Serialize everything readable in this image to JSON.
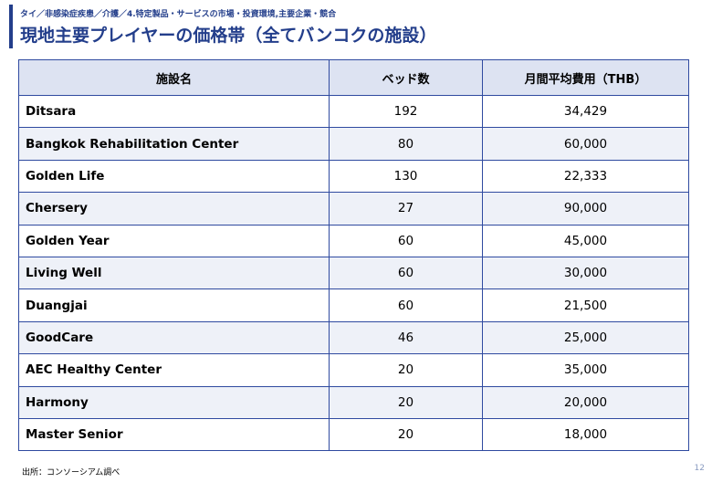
{
  "header": {
    "breadcrumb": "タイ／非感染症疾患／介護／4.特定製品・サービスの市場・投資環境,主要企業・競合",
    "title": "現地主要プレイヤーの価格帯（全てバンコクの施設）"
  },
  "table": {
    "columns": [
      "施設名",
      "ベッド数",
      "月間平均費用（THB）"
    ],
    "rows": [
      {
        "name": "Ditsara",
        "beds": "192",
        "cost": "34,429"
      },
      {
        "name": "Bangkok Rehabilitation Center",
        "beds": "80",
        "cost": "60,000"
      },
      {
        "name": "Golden Life",
        "beds": "130",
        "cost": "22,333"
      },
      {
        "name": "Chersery",
        "beds": "27",
        "cost": "90,000"
      },
      {
        "name": "Golden Year",
        "beds": "60",
        "cost": "45,000"
      },
      {
        "name": "Living Well",
        "beds": "60",
        "cost": "30,000"
      },
      {
        "name": "Duangjai",
        "beds": "60",
        "cost": "21,500"
      },
      {
        "name": "GoodCare",
        "beds": "46",
        "cost": "25,000"
      },
      {
        "name": "AEC Healthy Center",
        "beds": "20",
        "cost": "35,000"
      },
      {
        "name": "Harmony",
        "beds": "20",
        "cost": "20,000"
      },
      {
        "name": "Master Senior",
        "beds": "20",
        "cost": "18,000"
      }
    ]
  },
  "footer": {
    "source": "出所：コンソーシアム調べ",
    "page_number": "12"
  },
  "colors": {
    "accent": "#233e8b",
    "border": "#2f4aa0",
    "header_bg": "#dde3f2",
    "alt_row_bg": "#eef1f8"
  }
}
